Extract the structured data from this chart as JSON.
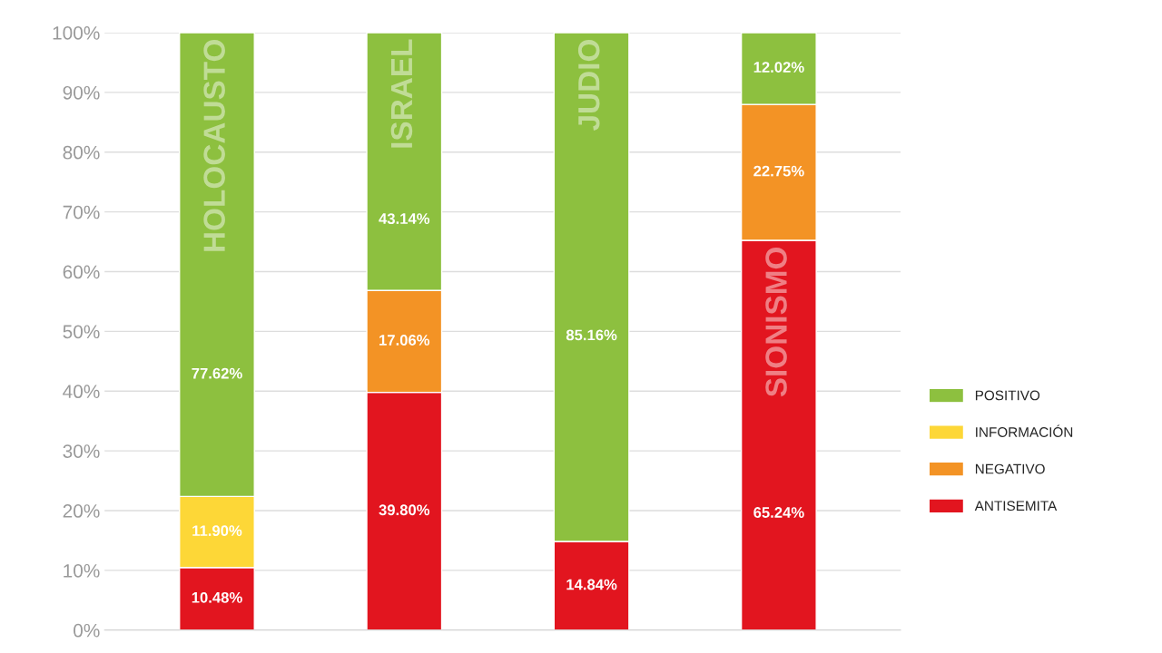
{
  "chart_data": {
    "type": "bar",
    "stacked": true,
    "categories": [
      "HOLOCAUSTO",
      "ISRAEL",
      "JUDIO",
      "SIONISMO"
    ],
    "series": [
      {
        "name": "ANTISEMITA",
        "color": "#e2151f",
        "values": [
          10.48,
          39.8,
          14.84,
          65.24
        ],
        "value_labels": [
          "10.48%",
          "39.80%",
          "14.84%",
          "65.24%"
        ]
      },
      {
        "name": "NEGATIVO",
        "color": "#f39325",
        "values": [
          null,
          17.06,
          null,
          22.75
        ],
        "value_labels": [
          null,
          "17.06%",
          null,
          "22.75%"
        ]
      },
      {
        "name": "INFORMACIÓN",
        "color": "#fdd737",
        "values": [
          11.9,
          null,
          null,
          null
        ],
        "value_labels": [
          "11.90%",
          null,
          null,
          null
        ]
      },
      {
        "name": "POSITIVO",
        "color": "#8dc03f",
        "values": [
          77.62,
          43.14,
          85.16,
          12.02
        ],
        "value_labels": [
          "77.62%",
          "43.14%",
          "85.16%",
          "12.02%"
        ]
      }
    ],
    "ylim": [
      0,
      100
    ],
    "yticks": [
      {
        "value": 0,
        "label": "0%"
      },
      {
        "value": 10,
        "label": "10%"
      },
      {
        "value": 20,
        "label": "20%"
      },
      {
        "value": 30,
        "label": "30%"
      },
      {
        "value": 40,
        "label": "40%"
      },
      {
        "value": 50,
        "label": "50%"
      },
      {
        "value": 60,
        "label": "60%"
      },
      {
        "value": 70,
        "label": "70%"
      },
      {
        "value": 80,
        "label": "80%"
      },
      {
        "value": 90,
        "label": "90%"
      },
      {
        "value": 100,
        "label": "100%"
      }
    ],
    "grid": "y",
    "legend": "right"
  }
}
